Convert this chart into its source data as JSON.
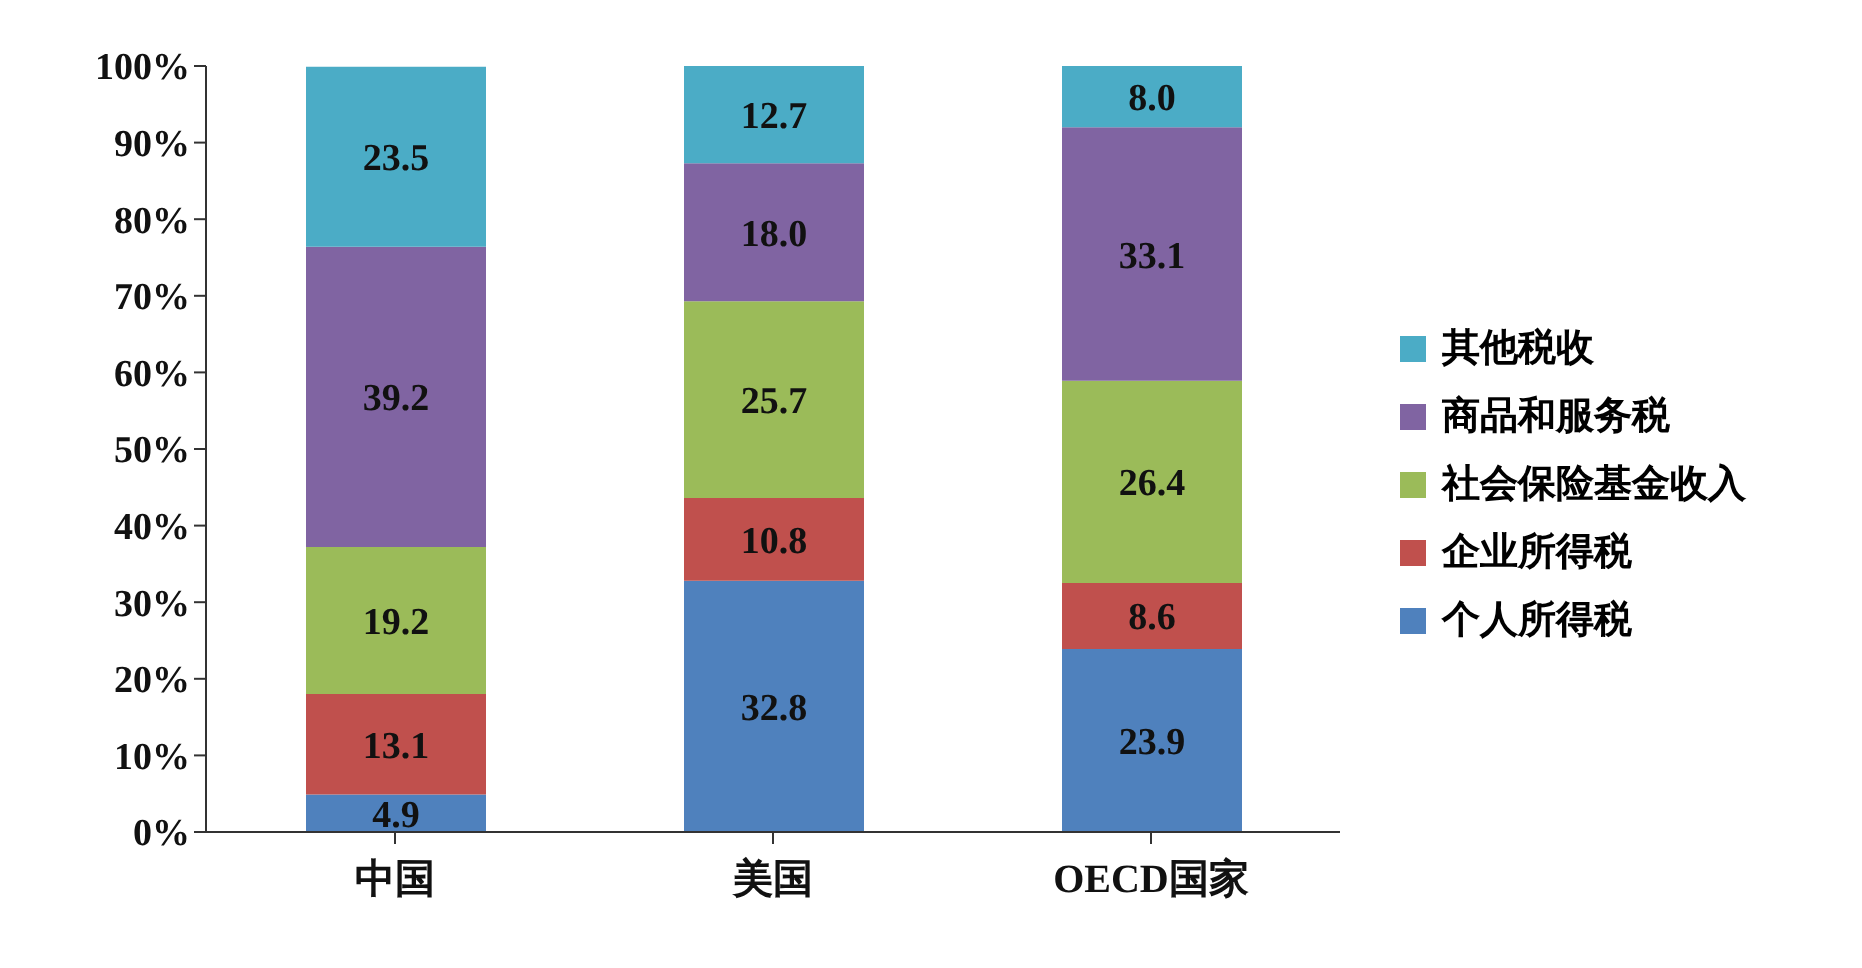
{
  "chart_data": {
    "type": "bar",
    "stacked": true,
    "categories": [
      "中国",
      "美国",
      "OECD国家"
    ],
    "series": [
      {
        "name": "个人所得税",
        "color": "#4f81bd",
        "values": [
          4.9,
          32.8,
          23.9
        ],
        "value_labels": [
          "4.9",
          "32.8",
          "23.9"
        ]
      },
      {
        "name": "企业所得税",
        "color": "#c0504d",
        "values": [
          13.1,
          10.8,
          8.6
        ],
        "value_labels": [
          "13.1",
          "10.8",
          "8.6"
        ]
      },
      {
        "name": "社会保险基金收入",
        "color": "#9bbb59",
        "values": [
          19.2,
          25.7,
          26.4
        ],
        "value_labels": [
          "19.2",
          "25.7",
          "26.4"
        ]
      },
      {
        "name": "商品和服务税",
        "color": "#8064a2",
        "values": [
          39.2,
          18,
          33.1
        ],
        "value_labels": [
          "39.2",
          "18.0",
          "33.1"
        ]
      },
      {
        "name": "其他税收",
        "color": "#4bacc6",
        "values": [
          23.5,
          12.7,
          8
        ],
        "value_labels": [
          "23.5",
          "12.7",
          "8.0"
        ]
      }
    ],
    "ylim": [
      0,
      100
    ],
    "yticks": [
      {
        "value": 0,
        "label": "0%"
      },
      {
        "value": 10,
        "label": "10%"
      },
      {
        "value": 20,
        "label": "20%"
      },
      {
        "value": 30,
        "label": "30%"
      },
      {
        "value": 40,
        "label": "40%"
      },
      {
        "value": 50,
        "label": "50%"
      },
      {
        "value": 60,
        "label": "60%"
      },
      {
        "value": 70,
        "label": "70%"
      },
      {
        "value": 80,
        "label": "80%"
      },
      {
        "value": 90,
        "label": "90%"
      },
      {
        "value": 100,
        "label": "100%"
      }
    ],
    "grid": false,
    "legend": "right"
  }
}
